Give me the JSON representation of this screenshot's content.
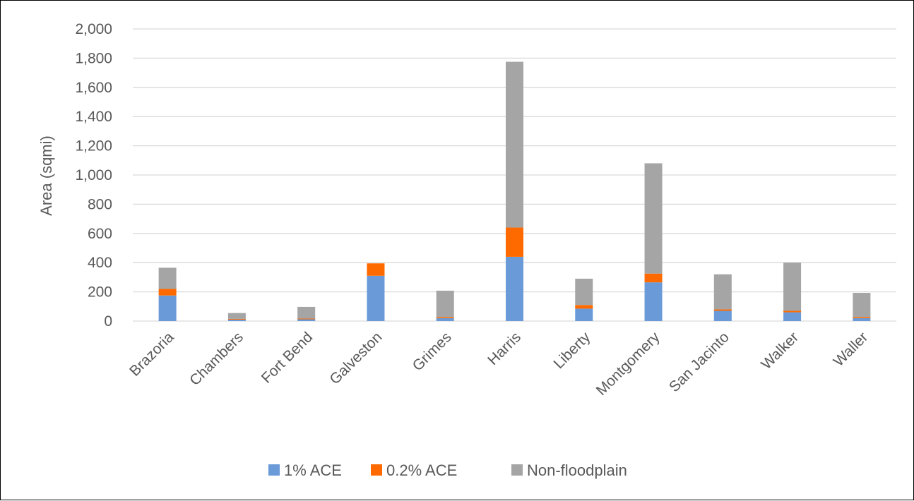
{
  "chart_data": {
    "type": "bar",
    "stacked": true,
    "title": "",
    "xlabel": "",
    "ylabel": "Area (sqmi)",
    "ylim": [
      0,
      2000
    ],
    "yticks": [
      0,
      200,
      400,
      600,
      800,
      1000,
      1200,
      1400,
      1600,
      1800,
      2000
    ],
    "ytick_labels": [
      "0",
      "200",
      "400",
      "600",
      "800",
      "1,000",
      "1,200",
      "1,400",
      "1,600",
      "1,800",
      "2,000"
    ],
    "grid": true,
    "legend_position": "bottom",
    "categories": [
      "Brazoria",
      "Chambers",
      "Fort Bend",
      "Galveston",
      "Grimes",
      "Harris",
      "Liberty",
      "Montgomery",
      "San Jacinto",
      "Walker",
      "Waller"
    ],
    "series": [
      {
        "name": "1% ACE",
        "color": "#6a9bd8",
        "values": [
          175,
          10,
          12,
          310,
          20,
          440,
          85,
          265,
          70,
          60,
          20
        ]
      },
      {
        "name": "0.2% ACE",
        "color": "#ff6a00",
        "values": [
          45,
          5,
          5,
          85,
          8,
          200,
          25,
          60,
          10,
          10,
          8
        ]
      },
      {
        "name": "Non-floodplain",
        "color": "#a5a5a5",
        "values": [
          145,
          40,
          80,
          0,
          180,
          1135,
          180,
          755,
          240,
          330,
          165
        ]
      }
    ]
  }
}
